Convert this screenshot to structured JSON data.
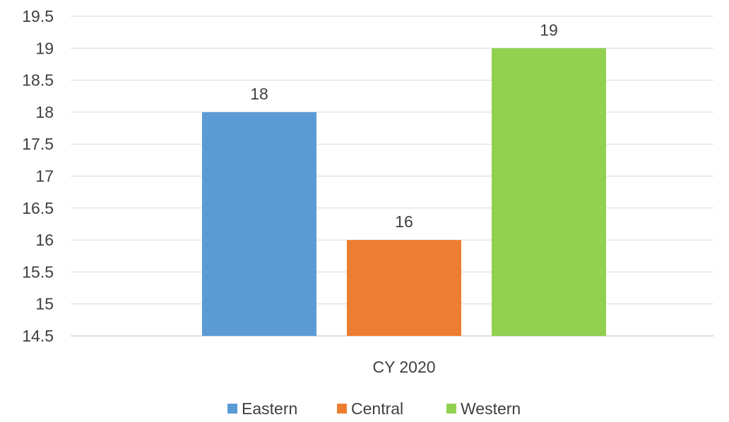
{
  "chart_data": {
    "type": "bar",
    "categories": [
      "CY 2020"
    ],
    "series": [
      {
        "name": "Eastern",
        "values": [
          18
        ],
        "color": "#5B9BD5"
      },
      {
        "name": "Central",
        "values": [
          16
        ],
        "color": "#ED7D31"
      },
      {
        "name": "Western",
        "values": [
          19
        ],
        "color": "#92D050"
      }
    ],
    "ylim": [
      14.5,
      19.5
    ],
    "y_ticks": [
      "14.5",
      "15",
      "15.5",
      "16",
      "16.5",
      "17",
      "17.5",
      "18",
      "18.5",
      "19",
      "19.5"
    ],
    "grid": true,
    "legend_position": "bottom",
    "data_labels": true,
    "title": "",
    "xlabel": "",
    "ylabel": ""
  }
}
